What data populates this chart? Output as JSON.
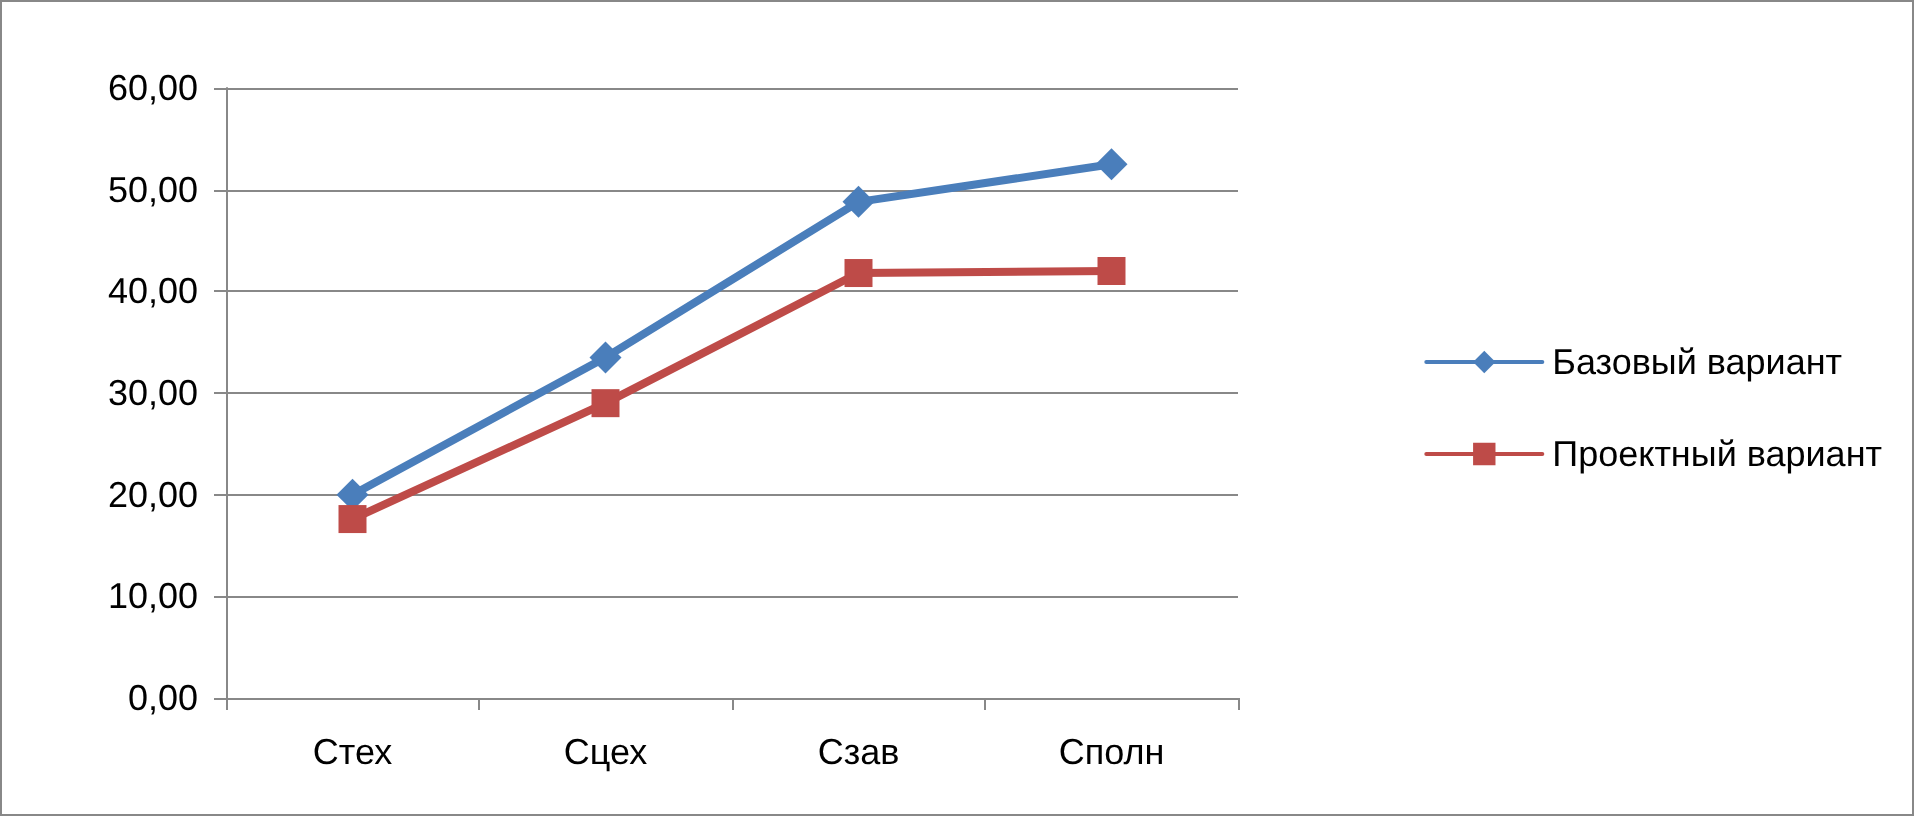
{
  "chart_data": {
    "type": "line",
    "categories": [
      "Стех",
      "Сцех",
      "Сзав",
      "Сполн"
    ],
    "series": [
      {
        "name": "Базовый вариант",
        "color": "#4a7ebb",
        "marker": "diamond",
        "values": [
          20.0,
          33.5,
          48.8,
          52.5
        ]
      },
      {
        "name": "Проектный вариант",
        "color": "#be4b48",
        "marker": "square",
        "values": [
          17.6,
          29.0,
          41.8,
          42.0
        ]
      }
    ],
    "ylim": [
      0,
      60
    ],
    "yticks": [
      {
        "value": 0,
        "label": "0,00"
      },
      {
        "value": 10,
        "label": "10,00"
      },
      {
        "value": 20,
        "label": "20,00"
      },
      {
        "value": 30,
        "label": "30,00"
      },
      {
        "value": 40,
        "label": "40,00"
      },
      {
        "value": 50,
        "label": "50,00"
      },
      {
        "value": 60,
        "label": "60,00"
      }
    ],
    "grid": "y",
    "legend": "right",
    "line_style": "solid"
  }
}
